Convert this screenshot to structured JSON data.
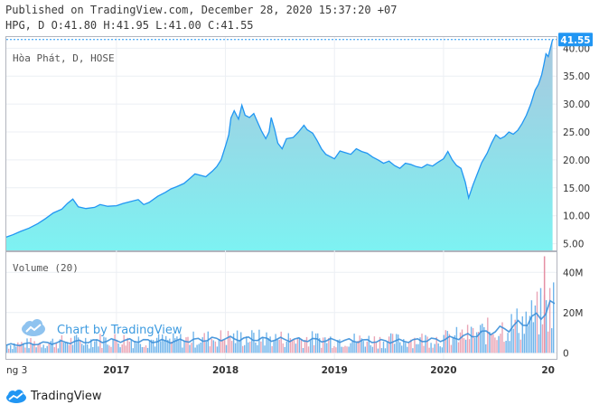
{
  "header": {
    "published": "Published on TradingView.com, December 28, 2020 15:37:20 +07",
    "ohlc": "HPG, D O:41.80 H:41.95 L:41.00 C:41.55"
  },
  "watermark": {
    "text": "Chart by TradingView"
  },
  "footer": {
    "brand": "TradingView"
  },
  "colors": {
    "line": "#2196f3",
    "fill_top": "#a9c7de",
    "fill_bottom": "#7df2f2",
    "last_price_bg": "#2196f3",
    "volume": "#4da3e6",
    "volume_red": "#e58fa4"
  },
  "chart_data": [
    {
      "type": "area",
      "legend": "Hòa Phát, D, HOSE",
      "last_price": "41.55",
      "y_ticks": [
        "5.00",
        "10.00",
        "15.00",
        "20.00",
        "25.00",
        "30.00",
        "35.00",
        "40.00"
      ],
      "ylim": [
        3.8,
        42.0
      ],
      "x_ticks": [
        {
          "label": "ng 3",
          "t": 2016.0
        },
        {
          "label": "2017",
          "t": 2017.0
        },
        {
          "label": "2018",
          "t": 2018.0
        },
        {
          "label": "2019",
          "t": 2019.0
        },
        {
          "label": "2020",
          "t": 2020.0
        },
        {
          "label": "20",
          "t": 2020.98
        }
      ],
      "xlim": [
        2015.99,
        2021.02
      ],
      "series": [
        {
          "values": [
            [
              2015.99,
              6.2
            ],
            [
              2016.05,
              6.6
            ],
            [
              2016.12,
              7.2
            ],
            [
              2016.2,
              7.8
            ],
            [
              2016.28,
              8.6
            ],
            [
              2016.35,
              9.5
            ],
            [
              2016.42,
              10.5
            ],
            [
              2016.5,
              11.2
            ],
            [
              2016.55,
              12.2
            ],
            [
              2016.6,
              13.0
            ],
            [
              2016.65,
              11.6
            ],
            [
              2016.72,
              11.3
            ],
            [
              2016.8,
              11.5
            ],
            [
              2016.85,
              12.0
            ],
            [
              2016.92,
              11.7
            ],
            [
              2017.0,
              11.8
            ],
            [
              2017.06,
              12.2
            ],
            [
              2017.12,
              12.5
            ],
            [
              2017.2,
              12.9
            ],
            [
              2017.25,
              12.0
            ],
            [
              2017.3,
              12.4
            ],
            [
              2017.38,
              13.5
            ],
            [
              2017.45,
              14.2
            ],
            [
              2017.5,
              14.8
            ],
            [
              2017.55,
              15.2
            ],
            [
              2017.62,
              15.8
            ],
            [
              2017.68,
              16.8
            ],
            [
              2017.72,
              17.5
            ],
            [
              2017.78,
              17.2
            ],
            [
              2017.82,
              17.0
            ],
            [
              2017.88,
              18.0
            ],
            [
              2017.92,
              18.8
            ],
            [
              2017.96,
              20.0
            ],
            [
              2018.0,
              22.5
            ],
            [
              2018.03,
              24.5
            ],
            [
              2018.05,
              27.5
            ],
            [
              2018.08,
              28.8
            ],
            [
              2018.12,
              27.3
            ],
            [
              2018.15,
              29.8
            ],
            [
              2018.18,
              28.0
            ],
            [
              2018.22,
              27.6
            ],
            [
              2018.26,
              28.3
            ],
            [
              2018.3,
              26.5
            ],
            [
              2018.33,
              25.2
            ],
            [
              2018.37,
              23.8
            ],
            [
              2018.4,
              25.0
            ],
            [
              2018.42,
              27.6
            ],
            [
              2018.45,
              25.5
            ],
            [
              2018.48,
              23.0
            ],
            [
              2018.52,
              22.0
            ],
            [
              2018.56,
              23.8
            ],
            [
              2018.62,
              24.0
            ],
            [
              2018.67,
              25.0
            ],
            [
              2018.72,
              26.2
            ],
            [
              2018.75,
              25.4
            ],
            [
              2018.8,
              24.8
            ],
            [
              2018.84,
              23.5
            ],
            [
              2018.88,
              22.0
            ],
            [
              2018.92,
              21.0
            ],
            [
              2018.96,
              20.6
            ],
            [
              2019.0,
              20.2
            ],
            [
              2019.05,
              21.6
            ],
            [
              2019.1,
              21.3
            ],
            [
              2019.15,
              21.0
            ],
            [
              2019.2,
              22.0
            ],
            [
              2019.25,
              21.5
            ],
            [
              2019.3,
              21.2
            ],
            [
              2019.35,
              20.5
            ],
            [
              2019.4,
              20.0
            ],
            [
              2019.45,
              19.4
            ],
            [
              2019.5,
              19.8
            ],
            [
              2019.55,
              19.0
            ],
            [
              2019.6,
              18.5
            ],
            [
              2019.65,
              19.4
            ],
            [
              2019.7,
              19.2
            ],
            [
              2019.75,
              18.8
            ],
            [
              2019.8,
              18.6
            ],
            [
              2019.85,
              19.2
            ],
            [
              2019.9,
              18.9
            ],
            [
              2019.95,
              19.6
            ],
            [
              2020.0,
              20.2
            ],
            [
              2020.04,
              21.5
            ],
            [
              2020.08,
              20.0
            ],
            [
              2020.12,
              19.0
            ],
            [
              2020.16,
              18.5
            ],
            [
              2020.2,
              16.0
            ],
            [
              2020.23,
              13.2
            ],
            [
              2020.27,
              15.5
            ],
            [
              2020.31,
              17.5
            ],
            [
              2020.35,
              19.5
            ],
            [
              2020.4,
              21.2
            ],
            [
              2020.44,
              23.0
            ],
            [
              2020.48,
              24.5
            ],
            [
              2020.52,
              23.8
            ],
            [
              2020.56,
              24.2
            ],
            [
              2020.6,
              25.0
            ],
            [
              2020.64,
              24.6
            ],
            [
              2020.68,
              25.3
            ],
            [
              2020.72,
              26.5
            ],
            [
              2020.76,
              28.0
            ],
            [
              2020.8,
              30.0
            ],
            [
              2020.84,
              32.5
            ],
            [
              2020.87,
              33.5
            ],
            [
              2020.9,
              35.2
            ],
            [
              2020.92,
              37.0
            ],
            [
              2020.94,
              39.0
            ],
            [
              2020.96,
              38.5
            ],
            [
              2020.98,
              40.0
            ],
            [
              2021.0,
              41.55
            ]
          ]
        }
      ]
    },
    {
      "type": "bar",
      "legend": "Volume (20)",
      "y_ticks": [
        "0",
        "20M",
        "40M"
      ],
      "ylim": [
        -3,
        50
      ],
      "volume_levels": [
        [
          2015.99,
          4.0
        ],
        [
          2016.5,
          5.5
        ],
        [
          2017.0,
          6.5
        ],
        [
          2017.5,
          6.0
        ],
        [
          2018.0,
          7.5
        ],
        [
          2018.5,
          7.0
        ],
        [
          2019.0,
          6.5
        ],
        [
          2019.5,
          6.0
        ],
        [
          2020.0,
          7.0
        ],
        [
          2020.3,
          9.5
        ],
        [
          2020.6,
          13.0
        ],
        [
          2020.8,
          17.0
        ],
        [
          2020.95,
          22.0
        ],
        [
          2021.0,
          25.0
        ]
      ],
      "volume_spike": [
        2020.92,
        48.0
      ]
    }
  ]
}
